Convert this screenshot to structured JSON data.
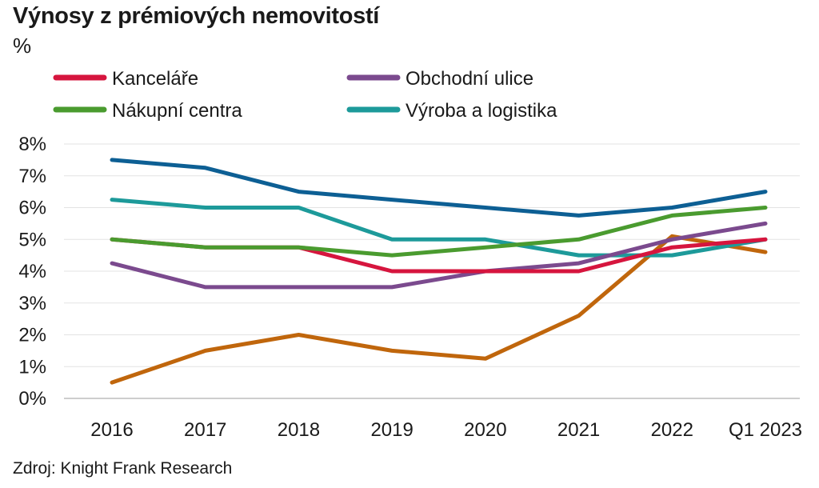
{
  "chart_data": {
    "type": "line",
    "title": "Výnosy z prémiových nemovitostí",
    "unit": "%",
    "source": "Zdroj: Knight Frank Research",
    "categories": [
      "2016",
      "2017",
      "2018",
      "2019",
      "2020",
      "2021",
      "2022",
      "Q1 2023"
    ],
    "ylim": [
      0,
      8
    ],
    "yticks": [
      0,
      1,
      2,
      3,
      4,
      5,
      6,
      7,
      8
    ],
    "ytick_labels": [
      "0%",
      "1%",
      "2%",
      "3%",
      "4%",
      "5%",
      "6%",
      "7%",
      "8%"
    ],
    "grid": true,
    "legend_position": "top",
    "series": [
      {
        "name": "Kanceláře",
        "color": "#d6153e",
        "values": [
          5.0,
          4.75,
          4.75,
          4.0,
          4.0,
          4.0,
          4.75,
          5.0
        ]
      },
      {
        "name": "Obchodní ulice",
        "color": "#7b4a8e",
        "values": [
          4.25,
          3.5,
          3.5,
          3.5,
          4.0,
          4.25,
          5.0,
          5.5
        ]
      },
      {
        "name": "Nákupní centra",
        "color": "#4a9b2f",
        "values": [
          5.0,
          4.75,
          4.75,
          4.5,
          4.75,
          5.0,
          5.75,
          6.0
        ]
      },
      {
        "name": "Výroba a logistika",
        "color": "#1d9a9a",
        "values": [
          6.25,
          6.0,
          6.0,
          5.0,
          5.0,
          4.5,
          4.5,
          5.0
        ]
      },
      {
        "color": "#0d5f94",
        "values": [
          7.5,
          7.25,
          6.5,
          6.25,
          6.0,
          5.75,
          6.0,
          6.5
        ]
      },
      {
        "color": "#c0660c",
        "values": [
          0.5,
          1.5,
          2.0,
          1.5,
          1.25,
          2.6,
          5.1,
          4.6
        ]
      }
    ]
  }
}
